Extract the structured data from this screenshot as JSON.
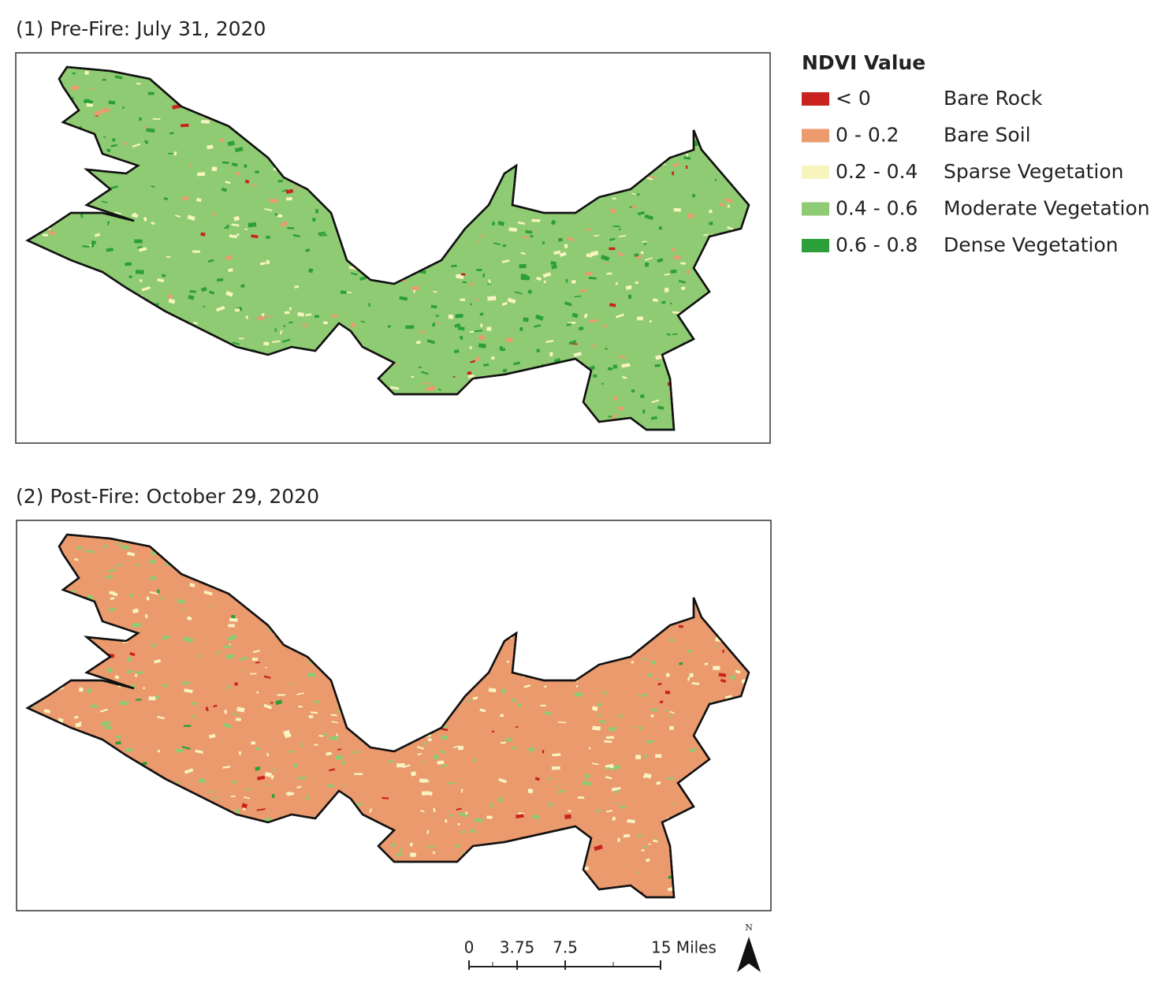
{
  "maps": [
    {
      "title": "(1) Pre-Fire: July 31, 2020"
    },
    {
      "title": "(2) Post-Fire: October 29, 2020"
    }
  ],
  "legend": {
    "title": "NDVI Value",
    "items": [
      {
        "range": "< 0",
        "label": "Bare Rock",
        "color": "#c8231e"
      },
      {
        "range": "0 - 0.2",
        "label": "Bare Soil",
        "color": "#eb9a6e"
      },
      {
        "range": "0.2 - 0.4",
        "label": "Sparse Vegetation",
        "color": "#f7f4c0"
      },
      {
        "range": "0.4 - 0.6",
        "label": "Moderate Vegetation",
        "color": "#8fcb72"
      },
      {
        "range": "0.6 - 0.8",
        "label": "Dense Vegetation",
        "color": "#2c9f3a"
      }
    ]
  },
  "scale_bar": {
    "labels": [
      "0",
      "3.75",
      "7.5",
      "15 Miles"
    ]
  },
  "north_arrow": {
    "label": "N"
  }
}
